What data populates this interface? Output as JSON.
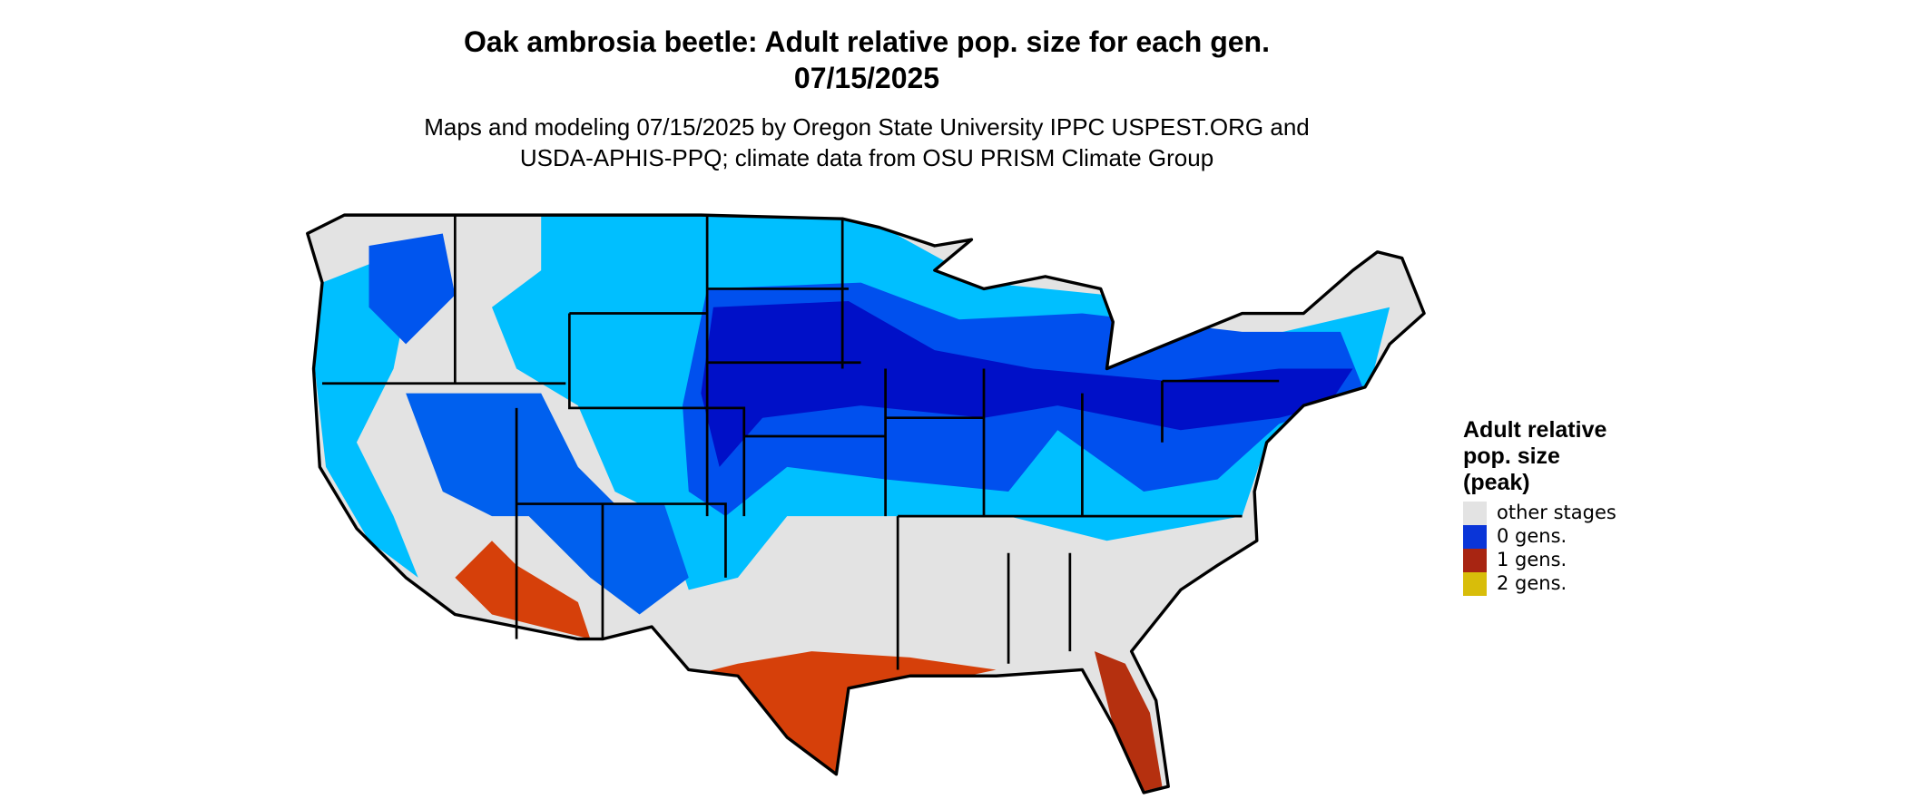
{
  "map": {
    "title": [
      "Oak ambrosia beetle: Adult relative pop. size for each gen.",
      "07/15/2025"
    ],
    "subtitle": [
      "Maps and modeling 07/15/2025 by Oregon State University IPPC USPEST.ORG and",
      "USDA-APHIS-PPQ; climate data from OSU PRISM Climate Group"
    ],
    "legend": {
      "title": [
        "Adult relative",
        "pop. size",
        "(peak)"
      ],
      "entries": [
        {
          "label": "other stages",
          "color": "#e3e3e3"
        },
        {
          "label": "0 gens.",
          "color": "#0a35d8"
        },
        {
          "label": "1 gens.",
          "color": "#a82512"
        },
        {
          "label": "2 gens.",
          "color": "#d8bd0a"
        }
      ]
    }
  }
}
